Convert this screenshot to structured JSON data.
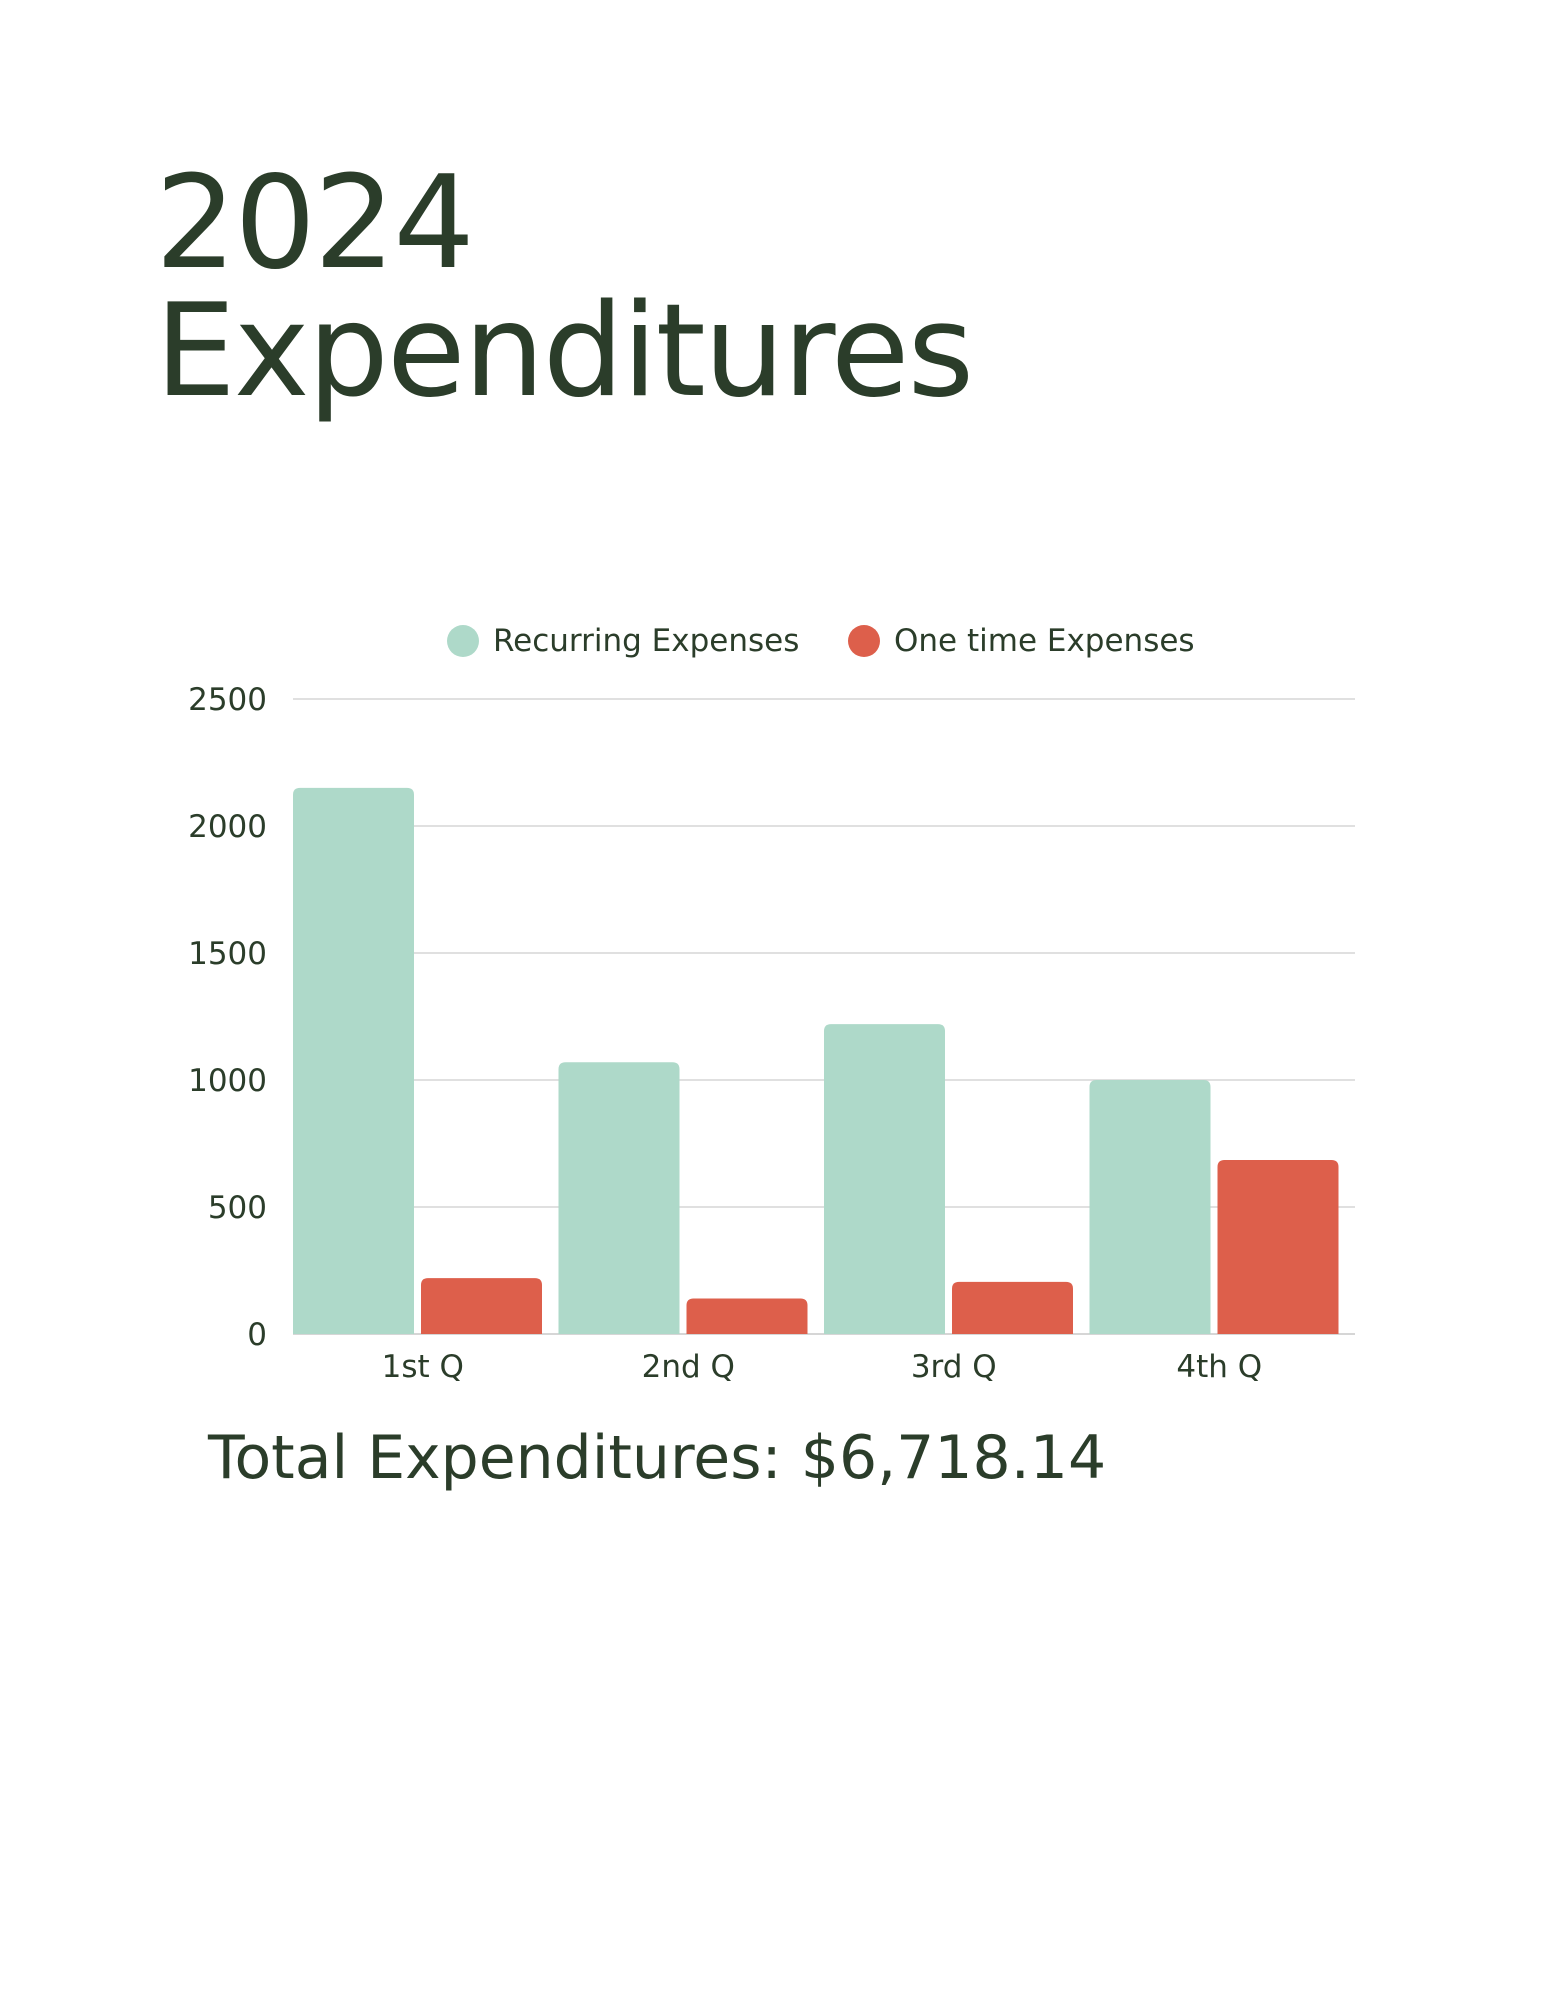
{
  "title": {
    "line1": "2024",
    "line2": "Expenditures"
  },
  "total": {
    "text": "Total Expenditures: $6,718.14"
  },
  "colors": {
    "recurring": "#aed9c9",
    "one_time": "#dd5f4b",
    "text": "#2b3d2a",
    "grid": "#d6d6d6"
  },
  "chart_data": {
    "type": "bar",
    "categories": [
      "1st Q",
      "2nd Q",
      "3rd Q",
      "4th Q"
    ],
    "series": [
      {
        "name": "Recurring Expenses",
        "values": [
          2150,
          1070,
          1220,
          1000
        ],
        "color": "#aed9c9"
      },
      {
        "name": "One time Expenses",
        "values": [
          220,
          140,
          205,
          685
        ],
        "color": "#dd5f4b"
      }
    ],
    "ylim": [
      0,
      2500
    ],
    "yticks": [
      "0",
      "500",
      "1000",
      "1500",
      "2000",
      "2500"
    ],
    "grid": true,
    "legend": "top-center",
    "title": "",
    "xlabel": "",
    "ylabel": ""
  }
}
